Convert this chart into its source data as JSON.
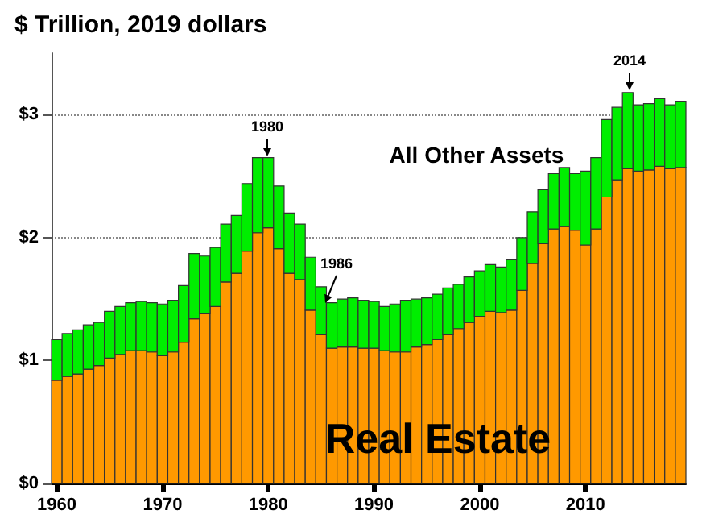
{
  "chart_data": {
    "type": "bar",
    "title": "$ Trillion, 2019 dollars",
    "stacked": true,
    "grid": "y",
    "x": [
      1960,
      1961,
      1962,
      1963,
      1964,
      1965,
      1966,
      1967,
      1968,
      1969,
      1970,
      1971,
      1972,
      1973,
      1974,
      1975,
      1976,
      1977,
      1978,
      1979,
      1980,
      1981,
      1982,
      1983,
      1984,
      1985,
      1986,
      1987,
      1988,
      1989,
      1990,
      1991,
      1992,
      1993,
      1994,
      1995,
      1996,
      1997,
      1998,
      1999,
      2000,
      2001,
      2002,
      2003,
      2004,
      2005,
      2006,
      2007,
      2008,
      2009,
      2010,
      2011,
      2012,
      2013,
      2014,
      2015,
      2016,
      2017,
      2018,
      2019
    ],
    "xlim": [
      1959.5,
      2019.5
    ],
    "xticks": [
      1960,
      1970,
      1980,
      1990,
      2000,
      2010
    ],
    "ylim": [
      0,
      3.5
    ],
    "yticks": [
      {
        "value": 0,
        "label": "$0"
      },
      {
        "value": 1,
        "label": "$1"
      },
      {
        "value": 2,
        "label": "$2"
      },
      {
        "value": 3,
        "label": "$3"
      }
    ],
    "series": [
      {
        "name": "Real Estate",
        "color": "#ff9900",
        "values": [
          0.84,
          0.87,
          0.89,
          0.93,
          0.96,
          1.02,
          1.05,
          1.08,
          1.08,
          1.07,
          1.04,
          1.07,
          1.15,
          1.34,
          1.38,
          1.44,
          1.64,
          1.71,
          1.89,
          2.04,
          2.08,
          1.91,
          1.71,
          1.66,
          1.41,
          1.21,
          1.1,
          1.11,
          1.11,
          1.1,
          1.1,
          1.08,
          1.07,
          1.07,
          1.11,
          1.13,
          1.17,
          1.21,
          1.26,
          1.31,
          1.36,
          1.4,
          1.39,
          1.41,
          1.57,
          1.79,
          1.95,
          2.07,
          2.09,
          2.06,
          1.94,
          2.07,
          2.33,
          2.47,
          2.56,
          2.54,
          2.55,
          2.58,
          2.56,
          2.57
        ]
      },
      {
        "name": "All Other Assets",
        "color": "#00ee00",
        "values": [
          0.33,
          0.35,
          0.36,
          0.36,
          0.35,
          0.38,
          0.39,
          0.39,
          0.4,
          0.4,
          0.42,
          0.42,
          0.46,
          0.53,
          0.47,
          0.48,
          0.47,
          0.47,
          0.55,
          0.61,
          0.57,
          0.51,
          0.49,
          0.45,
          0.43,
          0.39,
          0.37,
          0.39,
          0.4,
          0.39,
          0.38,
          0.36,
          0.39,
          0.42,
          0.39,
          0.38,
          0.37,
          0.38,
          0.36,
          0.37,
          0.37,
          0.38,
          0.37,
          0.41,
          0.43,
          0.42,
          0.44,
          0.45,
          0.48,
          0.46,
          0.6,
          0.58,
          0.63,
          0.59,
          0.62,
          0.54,
          0.54,
          0.55,
          0.52,
          0.54
        ]
      }
    ],
    "annotations": [
      "1980",
      "1986",
      "2014"
    ]
  }
}
